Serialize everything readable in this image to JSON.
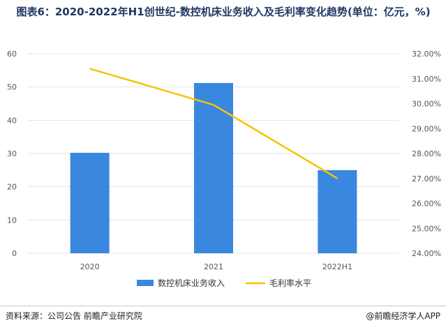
{
  "title": "图表6：2020-2022年H1创世纪-数控机床业务收入及毛利率变化趋势(单位：亿元，%)",
  "footer": {
    "source": "资料来源：公司公告 前瞻产业研究院",
    "brand": "@前瞻经济学人APP"
  },
  "colors": {
    "bar": "#3a87e0",
    "line": "#f5c400",
    "grid": "#e3e3e3",
    "title": "#1f3864"
  },
  "chart_data": {
    "type": "bar+line",
    "categories": [
      "2020",
      "2021",
      "2022H1"
    ],
    "series": [
      {
        "name": "数控机床业务收入",
        "type": "bar",
        "axis": "left",
        "values": [
          30.2,
          51.2,
          25.0
        ]
      },
      {
        "name": "毛利率水平",
        "type": "line",
        "axis": "right",
        "values": [
          31.4,
          29.95,
          27.0
        ]
      }
    ],
    "left_axis": {
      "min": 0,
      "max": 60,
      "ticks": [
        "0",
        "10",
        "20",
        "30",
        "40",
        "50",
        "60"
      ]
    },
    "right_axis": {
      "min": 24,
      "max": 32,
      "ticks": [
        "24.00%",
        "25.00%",
        "26.00%",
        "27.00%",
        "28.00%",
        "29.00%",
        "30.00%",
        "31.00%",
        "32.00%"
      ]
    },
    "grid": true,
    "legend_position": "bottom"
  }
}
